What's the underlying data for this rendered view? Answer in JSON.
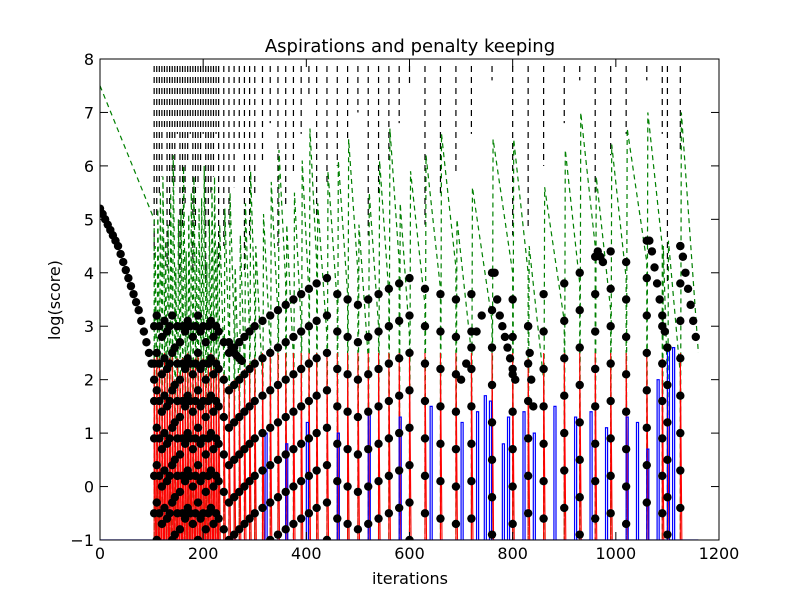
{
  "chart_data": {
    "type": "line",
    "title": "Aspirations and penalty keeping",
    "xlabel": "iterations",
    "ylabel": "log(score)",
    "xlim": [
      0,
      1200
    ],
    "ylim": [
      -1,
      8
    ],
    "xticks": [
      0,
      200,
      400,
      600,
      800,
      1000,
      1200
    ],
    "yticks": [
      -1,
      0,
      1,
      2,
      3,
      4,
      5,
      6,
      7,
      8
    ],
    "x_tick_labels": [
      "0",
      "200",
      "400",
      "600",
      "800",
      "1000",
      "1200"
    ],
    "y_tick_labels": [
      "−1",
      "0",
      "1",
      "2",
      "3",
      "4",
      "5",
      "6",
      "7",
      "8"
    ],
    "grid": false,
    "legend": "none",
    "colors": {
      "black_markers": "#000000",
      "red_line": "#ff0000",
      "blue_line": "#0000ff",
      "green_dashed": "#008000",
      "restart_markers": "#000000"
    },
    "series": [
      {
        "style": "black circles",
        "description_note": "current score trace",
        "segments": [
          {
            "x": [
              0,
              5,
              10,
              15,
              20,
              25,
              30,
              35,
              40,
              45,
              50,
              55,
              60,
              65,
              70,
              75,
              80,
              85,
              90,
              95,
              100,
              105
            ],
            "y": [
              5.2,
              5.1,
              5.0,
              4.9,
              4.8,
              4.7,
              4.6,
              4.5,
              4.35,
              4.2,
              4.05,
              3.9,
              3.75,
              3.6,
              3.45,
              3.3,
              3.1,
              2.9,
              2.7,
              2.5,
              2.3,
              2.0
            ]
          },
          {
            "x": [
              250,
              255,
              260,
              265,
              270,
              275
            ],
            "y": [
              2.7,
              2.6,
              2.5,
              2.45,
              2.4,
              2.35
            ]
          },
          {
            "x": [
              700,
              710,
              720,
              730,
              740
            ],
            "y": [
              2.0,
              2.3,
              2.6,
              2.9,
              3.2
            ]
          },
          {
            "x": [
              765,
              770,
              775,
              780,
              785,
              790,
              795,
              800,
              805
            ],
            "y": [
              4.0,
              3.5,
              3.2,
              3.0,
              2.8,
              2.6,
              2.4,
              2.2,
              2.0
            ]
          },
          {
            "x": [
              830,
              833,
              836,
              840
            ],
            "y": [
              3.0,
              2.5,
              2.0,
              1.5
            ]
          },
          {
            "x": [
              965,
              970,
              975
            ],
            "y": [
              4.4,
              4.3,
              4.2
            ]
          },
          {
            "x": [
              1065,
              1070,
              1075,
              1080,
              1085,
              1090,
              1095,
              1100
            ],
            "y": [
              4.6,
              4.4,
              4.1,
              3.8,
              3.5,
              3.2,
              2.9,
              2.6
            ]
          },
          {
            "x": [
              1125,
              1130,
              1135,
              1140,
              1145,
              1150,
              1155
            ],
            "y": [
              4.5,
              4.3,
              4.0,
              3.7,
              3.4,
              3.1,
              2.8
            ]
          }
        ]
      }
    ],
    "restart_iterations": [
      105,
      110,
      115,
      120,
      125,
      130,
      135,
      140,
      145,
      150,
      155,
      160,
      165,
      170,
      175,
      180,
      185,
      190,
      195,
      200,
      205,
      210,
      215,
      220,
      225,
      230,
      240,
      250,
      260,
      270,
      280,
      290,
      300,
      315,
      330,
      345,
      360,
      375,
      390,
      405,
      420,
      440,
      460,
      480,
      500,
      520,
      540,
      560,
      580,
      600,
      630,
      660,
      690,
      720,
      760,
      800,
      830,
      860,
      900,
      930,
      960,
      990,
      1020,
      1060,
      1090,
      1100,
      1125
    ],
    "column_tops": [
      3.0,
      3.2,
      3.0,
      2.8,
      3.1,
      2.9,
      3.0,
      3.2,
      2.6,
      3.0,
      2.7,
      3.0,
      2.9,
      3.1,
      3.0,
      2.8,
      3.0,
      3.2,
      2.9,
      3.0,
      2.7,
      3.0,
      3.1,
      2.8,
      3.0,
      2.9,
      2.7,
      2.5,
      2.6,
      2.7,
      2.8,
      2.9,
      3.0,
      3.1,
      3.2,
      3.3,
      3.4,
      3.5,
      3.6,
      3.7,
      3.8,
      3.9,
      3.6,
      3.5,
      3.4,
      3.5,
      3.6,
      3.7,
      3.8,
      3.9,
      3.7,
      3.6,
      3.5,
      3.6,
      4.0,
      3.5,
      3.0,
      3.6,
      3.8,
      4.0,
      4.3,
      4.4,
      4.2,
      4.6,
      3.0,
      2.6,
      4.5
    ]
  }
}
